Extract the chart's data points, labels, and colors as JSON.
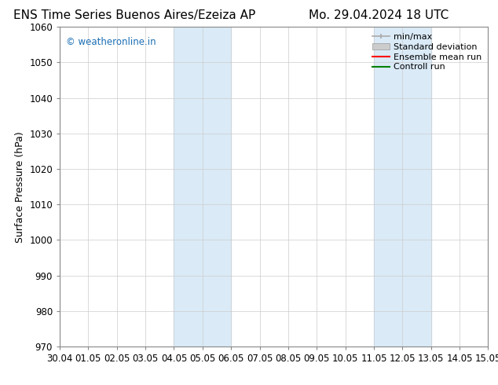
{
  "title_left": "ENS Time Series Buenos Aires/Ezeiza AP",
  "title_right": "Mo. 29.04.2024 18 UTC",
  "ylabel": "Surface Pressure (hPa)",
  "xlabel": "",
  "ylim": [
    970,
    1060
  ],
  "yticks": [
    970,
    980,
    990,
    1000,
    1010,
    1020,
    1030,
    1040,
    1050,
    1060
  ],
  "xtick_labels": [
    "30.04",
    "01.05",
    "02.05",
    "03.05",
    "04.05",
    "05.05",
    "06.05",
    "07.05",
    "08.05",
    "09.05",
    "10.05",
    "11.05",
    "12.05",
    "13.05",
    "14.05",
    "15.05"
  ],
  "xlim": [
    0,
    15
  ],
  "shaded_regions": [
    {
      "xmin": 4.0,
      "xmax": 6.0
    },
    {
      "xmin": 11.0,
      "xmax": 13.0
    }
  ],
  "shaded_color": "#daeaf7",
  "watermark": "© weatheronline.in",
  "watermark_color": "#1a6eb5",
  "legend_entries": [
    {
      "label": "min/max",
      "color": "#aaaaaa",
      "style": "minmax"
    },
    {
      "label": "Standard deviation",
      "color": "#cccccc",
      "style": "stddev"
    },
    {
      "label": "Ensemble mean run",
      "color": "#ff0000",
      "style": "line"
    },
    {
      "label": "Controll run",
      "color": "#008000",
      "style": "line"
    }
  ],
  "background_color": "#ffffff",
  "grid_color": "#cccccc",
  "title_fontsize": 11,
  "tick_fontsize": 8.5,
  "ylabel_fontsize": 9,
  "legend_fontsize": 8
}
